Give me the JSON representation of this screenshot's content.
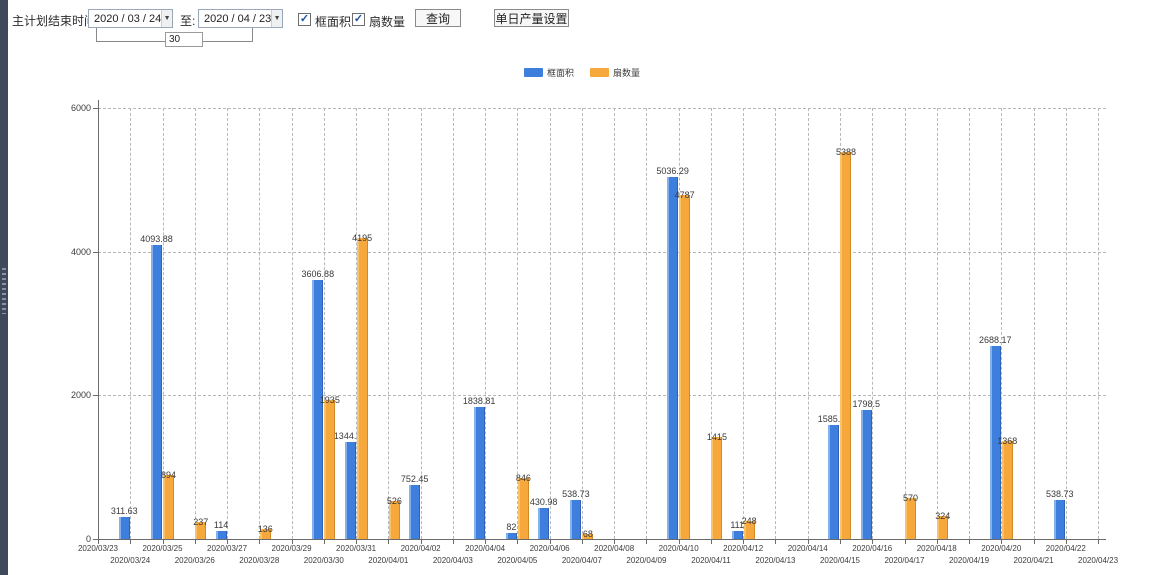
{
  "toolbar": {
    "plan_end_label": "主计划结束时间:",
    "date_from": "2020 / 03 / 24",
    "to_label": "至:",
    "date_to": "2020 / 04 / 23",
    "interval_value": "30",
    "checkbox_frame_area": "框面积",
    "checkbox_fan_count": "扇数量",
    "query_button": "查询",
    "daily_output_button": "单日产量设置",
    "dropdown_arrow": "▼",
    "check_glyph": "✓"
  },
  "legend": {
    "items": [
      {
        "label": "框面积",
        "color": "#3e7edc"
      },
      {
        "label": "扇数量",
        "color": "#f6a83d"
      }
    ]
  },
  "colors": {
    "frame_area_bar": "#3e7edc",
    "fan_count_bar": "#f6a83d",
    "grid_line": "#b8b8b8",
    "axis_line": "#6b6b6b",
    "label_text": "#3c3c3c",
    "left_strip": "#3e4a5c"
  },
  "chart_data": {
    "type": "bar",
    "title": "",
    "xlabel": "",
    "ylabel": "",
    "ylim": [
      0,
      6000
    ],
    "yticks": [
      0,
      2000,
      4000,
      6000
    ],
    "grid": "dashed",
    "legend_position": "top-center",
    "categories": [
      "2020/03/23",
      "2020/03/24",
      "2020/03/25",
      "2020/03/26",
      "2020/03/27",
      "2020/03/28",
      "2020/03/29",
      "2020/03/30",
      "2020/03/31",
      "2020/04/01",
      "2020/04/02",
      "2020/04/03",
      "2020/04/04",
      "2020/04/05",
      "2020/04/06",
      "2020/04/07",
      "2020/04/08",
      "2020/04/09",
      "2020/04/10",
      "2020/04/11",
      "2020/04/12",
      "2020/04/13",
      "2020/04/14",
      "2020/04/15",
      "2020/04/16",
      "2020/04/17",
      "2020/04/18",
      "2020/04/19",
      "2020/04/20",
      "2020/04/21",
      "2020/04/22",
      "2020/04/23"
    ],
    "series": [
      {
        "name": "框面积",
        "color": "#3e7edc",
        "values": [
          null,
          311.63,
          4093.88,
          null,
          114,
          null,
          null,
          3606.88,
          1344.95,
          null,
          752.45,
          null,
          1838.81,
          82,
          430.98,
          538.73,
          null,
          null,
          5036.29,
          null,
          111,
          null,
          null,
          1585.96,
          1798.5,
          null,
          null,
          null,
          2688.17,
          null,
          538.73,
          null
        ]
      },
      {
        "name": "扇数量",
        "color": "#f6a83d",
        "values": [
          null,
          null,
          894,
          237,
          null,
          136,
          null,
          1935,
          4195,
          526,
          null,
          null,
          null,
          846,
          null,
          68,
          null,
          null,
          4787,
          1415,
          248,
          null,
          null,
          5388,
          null,
          570,
          324,
          null,
          1368,
          null,
          null,
          null
        ]
      }
    ]
  }
}
